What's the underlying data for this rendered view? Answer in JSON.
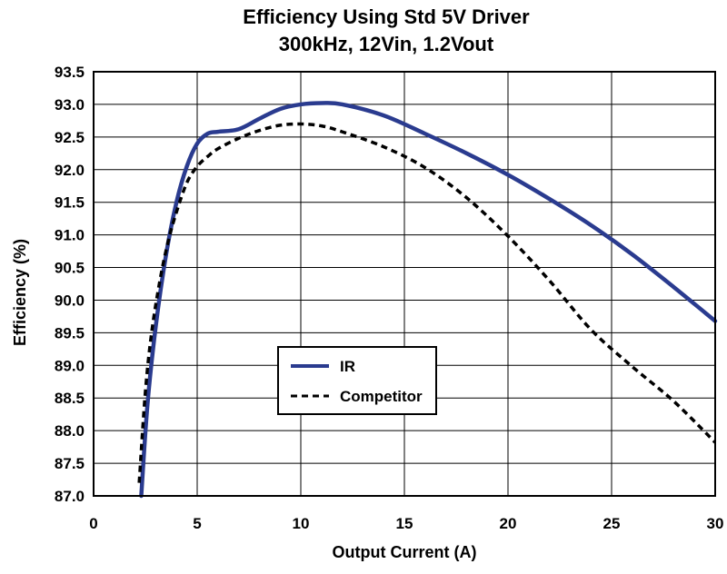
{
  "chart_data": {
    "type": "line",
    "title": "Efficiency Using Std 5V Driver",
    "subtitle": "300kHz, 12Vin, 1.2Vout",
    "xlabel": "Output Current (A)",
    "ylabel": "Efficiency (%)",
    "xlim": [
      0,
      30
    ],
    "ylim": [
      87.0,
      93.5
    ],
    "x_ticks": [
      "0",
      "5",
      "10",
      "15",
      "20",
      "25",
      "30"
    ],
    "y_ticks": [
      "87.0",
      "87.5",
      "88.0",
      "88.5",
      "89.0",
      "89.5",
      "90.0",
      "90.5",
      "91.0",
      "91.5",
      "92.0",
      "92.5",
      "93.0",
      "93.5"
    ],
    "grid": true,
    "legend": "center-left",
    "series": [
      {
        "name": "IR",
        "style": "solid",
        "color": "#2a3b8f",
        "x": [
          2.3,
          2.6,
          3.0,
          3.5,
          4.0,
          4.5,
          5.0,
          5.5,
          6.0,
          7.0,
          8.0,
          9.0,
          10.0,
          11.0,
          12.0,
          14.0,
          16.0,
          18.0,
          20.0,
          22.0,
          24.0,
          26.0,
          28.0,
          30.0
        ],
        "y": [
          87.0,
          88.4,
          89.6,
          90.7,
          91.5,
          92.05,
          92.4,
          92.55,
          92.58,
          92.62,
          92.78,
          92.93,
          93.0,
          93.02,
          93.0,
          92.83,
          92.55,
          92.25,
          91.92,
          91.55,
          91.15,
          90.7,
          90.2,
          89.68
        ]
      },
      {
        "name": "Competitor",
        "style": "dashed",
        "color": "#000000",
        "x": [
          2.2,
          2.5,
          2.8,
          3.2,
          3.6,
          4.0,
          4.5,
          5.0,
          5.5,
          6.0,
          7.0,
          8.0,
          9.0,
          10.0,
          11.0,
          12.0,
          14.0,
          16.0,
          18.0,
          20.0,
          22.0,
          24.0,
          26.0,
          28.0,
          30.0
        ],
        "y": [
          87.2,
          88.6,
          89.5,
          90.3,
          90.9,
          91.35,
          91.8,
          92.05,
          92.2,
          92.32,
          92.48,
          92.6,
          92.68,
          92.7,
          92.67,
          92.58,
          92.35,
          92.03,
          91.57,
          90.98,
          90.3,
          89.55,
          88.98,
          88.45,
          87.82
        ]
      }
    ]
  }
}
